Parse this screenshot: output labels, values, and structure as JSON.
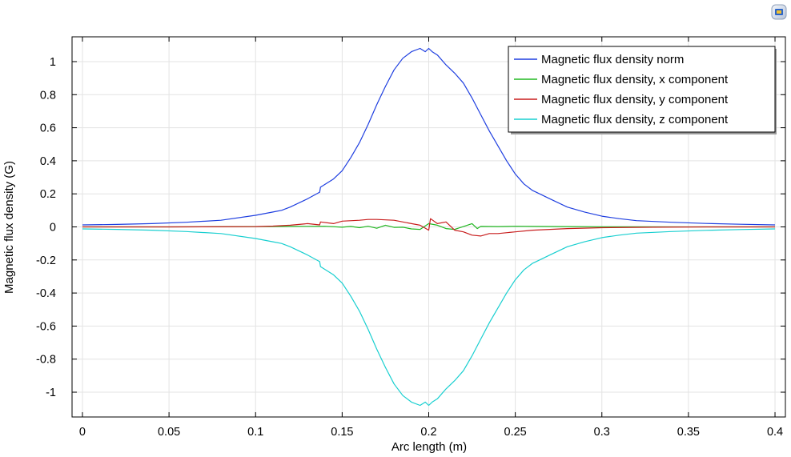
{
  "toolbar": {
    "icon": "comsol-graphics-icon"
  },
  "chart_data": {
    "type": "line",
    "title": "",
    "xlabel": "Arc length (m)",
    "ylabel": "Magnetic flux density (G)",
    "xlim": [
      -0.006,
      0.406
    ],
    "ylim": [
      -1.15,
      1.15
    ],
    "xticks": [
      0,
      0.05,
      0.1,
      0.15,
      0.2,
      0.25,
      0.3,
      0.35,
      0.4
    ],
    "xtick_labels": [
      "0",
      "0.05",
      "0.1",
      "0.15",
      "0.2",
      "0.25",
      "0.3",
      "0.35",
      "0.4"
    ],
    "yticks": [
      1,
      0.8,
      0.6,
      0.4,
      0.2,
      0,
      -0.2,
      -0.4,
      -0.6,
      -0.8,
      -1
    ],
    "ytick_labels": [
      "1",
      "0.8",
      "0.6",
      "0.4",
      "0.2",
      "0",
      "-0.2",
      "-0.4",
      "-0.6",
      "-0.8",
      "-1"
    ],
    "grid": true,
    "legend_position": "top-right",
    "series": [
      {
        "name": "Magnetic flux density norm",
        "color": "#1f3fe0",
        "x": [
          0,
          0.02,
          0.04,
          0.06,
          0.08,
          0.1,
          0.11,
          0.115,
          0.12,
          0.13,
          0.137,
          0.1375,
          0.145,
          0.15,
          0.155,
          0.16,
          0.165,
          0.17,
          0.175,
          0.18,
          0.185,
          0.19,
          0.195,
          0.198,
          0.2,
          0.202,
          0.205,
          0.21,
          0.215,
          0.22,
          0.225,
          0.23,
          0.235,
          0.24,
          0.245,
          0.25,
          0.255,
          0.26,
          0.262,
          0.27,
          0.28,
          0.29,
          0.3,
          0.31,
          0.32,
          0.34,
          0.36,
          0.38,
          0.4
        ],
        "y": [
          0.012,
          0.015,
          0.02,
          0.028,
          0.04,
          0.07,
          0.09,
          0.1,
          0.12,
          0.17,
          0.21,
          0.24,
          0.29,
          0.34,
          0.42,
          0.51,
          0.62,
          0.74,
          0.85,
          0.95,
          1.02,
          1.06,
          1.08,
          1.06,
          1.08,
          1.06,
          1.04,
          0.98,
          0.93,
          0.87,
          0.78,
          0.68,
          0.58,
          0.49,
          0.4,
          0.32,
          0.26,
          0.22,
          0.21,
          0.17,
          0.12,
          0.09,
          0.065,
          0.05,
          0.038,
          0.028,
          0.021,
          0.016,
          0.012
        ]
      },
      {
        "name": "Magnetic flux density, x component",
        "color": "#22b822",
        "x": [
          0,
          0.05,
          0.1,
          0.12,
          0.14,
          0.15,
          0.155,
          0.16,
          0.165,
          0.17,
          0.175,
          0.18,
          0.185,
          0.19,
          0.195,
          0.2,
          0.205,
          0.21,
          0.215,
          0.22,
          0.225,
          0.228,
          0.23,
          0.24,
          0.25,
          0.26,
          0.28,
          0.3,
          0.35,
          0.4
        ],
        "y": [
          0,
          0,
          0.002,
          0.003,
          0.004,
          -0.002,
          0.003,
          -0.005,
          0.004,
          -0.008,
          0.01,
          -0.003,
          -0.002,
          -0.012,
          -0.015,
          0.02,
          0.01,
          -0.01,
          -0.015,
          0.002,
          0.02,
          -0.01,
          0.003,
          0.002,
          0.004,
          0.003,
          0.002,
          0.001,
          0,
          0
        ]
      },
      {
        "name": "Magnetic flux density, y component",
        "color": "#c81e1e",
        "x": [
          0,
          0.05,
          0.1,
          0.11,
          0.12,
          0.13,
          0.137,
          0.1375,
          0.145,
          0.15,
          0.16,
          0.165,
          0.17,
          0.18,
          0.185,
          0.19,
          0.195,
          0.2,
          0.201,
          0.205,
          0.21,
          0.215,
          0.22,
          0.225,
          0.23,
          0.235,
          0.24,
          0.25,
          0.26,
          0.28,
          0.3,
          0.33,
          0.36,
          0.4
        ],
        "y": [
          0,
          0,
          0.002,
          0.005,
          0.01,
          0.02,
          0.012,
          0.03,
          0.02,
          0.035,
          0.04,
          0.045,
          0.045,
          0.04,
          0.03,
          0.02,
          0.01,
          -0.02,
          0.05,
          0.02,
          0.03,
          -0.02,
          -0.03,
          -0.05,
          -0.055,
          -0.04,
          -0.04,
          -0.03,
          -0.02,
          -0.01,
          -0.005,
          -0.002,
          0,
          0
        ]
      },
      {
        "name": "Magnetic flux density, z component",
        "color": "#19cfd0",
        "x": [
          0,
          0.02,
          0.04,
          0.06,
          0.08,
          0.1,
          0.11,
          0.115,
          0.12,
          0.13,
          0.137,
          0.1375,
          0.145,
          0.15,
          0.155,
          0.16,
          0.165,
          0.17,
          0.175,
          0.18,
          0.185,
          0.19,
          0.195,
          0.198,
          0.2,
          0.202,
          0.205,
          0.21,
          0.215,
          0.22,
          0.225,
          0.23,
          0.235,
          0.24,
          0.245,
          0.25,
          0.255,
          0.26,
          0.262,
          0.27,
          0.28,
          0.29,
          0.3,
          0.31,
          0.32,
          0.34,
          0.36,
          0.38,
          0.4
        ],
        "y": [
          -0.012,
          -0.015,
          -0.02,
          -0.028,
          -0.04,
          -0.07,
          -0.09,
          -0.1,
          -0.12,
          -0.17,
          -0.21,
          -0.24,
          -0.29,
          -0.34,
          -0.42,
          -0.51,
          -0.62,
          -0.74,
          -0.85,
          -0.95,
          -1.02,
          -1.06,
          -1.08,
          -1.06,
          -1.08,
          -1.06,
          -1.04,
          -0.98,
          -0.93,
          -0.87,
          -0.78,
          -0.68,
          -0.58,
          -0.49,
          -0.4,
          -0.32,
          -0.26,
          -0.22,
          -0.21,
          -0.17,
          -0.12,
          -0.09,
          -0.065,
          -0.05,
          -0.038,
          -0.028,
          -0.021,
          -0.016,
          -0.012
        ]
      }
    ]
  }
}
